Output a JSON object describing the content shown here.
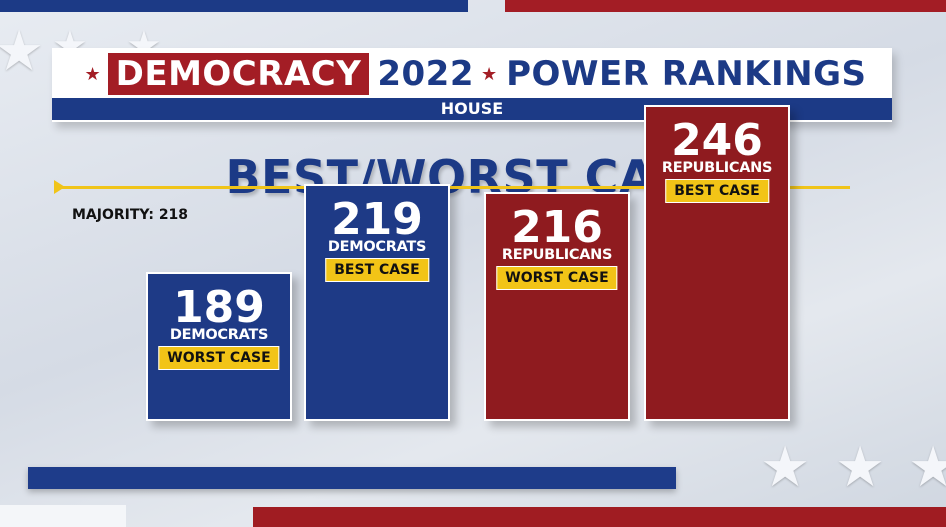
{
  "header": {
    "brand": "DEMOCRACY",
    "year": "2022",
    "title": "POWER RANKINGS",
    "subtitle": "HOUSE"
  },
  "chart_data": {
    "type": "bar",
    "title": "BEST/WORST CASE",
    "categories": [
      "DEMOCRATS",
      "DEMOCRATS",
      "REPUBLICANS",
      "REPUBLICANS"
    ],
    "case_labels": [
      "WORST CASE",
      "BEST CASE",
      "WORST CASE",
      "BEST CASE"
    ],
    "values": [
      189,
      219,
      216,
      246
    ],
    "parties": [
      "dem",
      "dem",
      "rep",
      "rep"
    ],
    "reference_line": {
      "label": "MAJORITY:",
      "value": 218
    },
    "xlabel": "",
    "ylabel": "",
    "grid": false,
    "colors": {
      "dem": "#1e3a86",
      "rep": "#8f1b1f",
      "case_badge": "#f2c417",
      "majority_line": "#f0c419"
    }
  }
}
